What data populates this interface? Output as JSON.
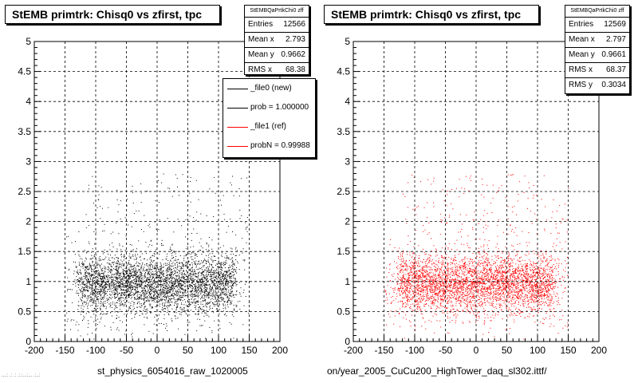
{
  "chart_data": [
    {
      "type": "scatter",
      "title": "StEMB primtrk: Chisq0 vs zfirst, tpc",
      "xlabel": "st_physics_6054016_raw_1020005",
      "ylabel": "",
      "xlim": [
        -200,
        200
      ],
      "ylim": [
        0,
        5
      ],
      "xticks": [
        "-200",
        "-150",
        "-100",
        "-50",
        "0",
        "50",
        "100",
        "150",
        "200"
      ],
      "yticks": [
        "0",
        "0.5",
        "1",
        "1.5",
        "2",
        "2.5",
        "3",
        "3.5",
        "4",
        "4.5",
        "5"
      ],
      "grid": true,
      "marker_color": "#000000",
      "series": [
        {
          "name": "_file0 (new)",
          "points": 12566,
          "x_core": [
            -125,
            125
          ],
          "y_core": [
            0.3,
            1.7
          ]
        }
      ],
      "stats": {
        "name": "StEMBQaPrtkChi0 zff",
        "entries": "12566",
        "mean_x": "2.793",
        "mean_y": "0.9662",
        "rms_x": "68.38"
      },
      "legend": {
        "placement": "top-right",
        "entries": [
          {
            "label": "_file0 (new)",
            "color": "#000000"
          },
          {
            "label": "prob = 1.000000",
            "color": "#000000"
          },
          {
            "label": "_file1 (ref)",
            "color": "#ff0000"
          },
          {
            "label": "probN = 0.99988",
            "color": "#ff0000"
          }
        ]
      }
    },
    {
      "type": "scatter",
      "title": "StEMB primtrk: Chisq0 vs zfirst, tpc",
      "xlabel": "on/year_2005_CuCu200_HighTower_daq_sl302.ittf/",
      "ylabel": "",
      "xlim": [
        -200,
        200
      ],
      "ylim": [
        0,
        5
      ],
      "xticks": [
        "-200",
        "-150",
        "-100",
        "-50",
        "0",
        "50",
        "100",
        "150",
        "200"
      ],
      "yticks": [
        "0",
        "0.5",
        "1",
        "1.5",
        "2",
        "2.5",
        "3",
        "3.5",
        "4",
        "4.5",
        "5"
      ],
      "grid": true,
      "marker_color": "#ff0000",
      "series": [
        {
          "name": "_file1 (ref)",
          "points": 12569,
          "x_core": [
            -125,
            125
          ],
          "y_core": [
            0.3,
            1.7
          ]
        }
      ],
      "stats": {
        "name": "StEMBQaPrtkChi0 zff",
        "entries": "12569",
        "mean_x": "2.797",
        "mean_y": "0.9661",
        "rms_x": "68.37",
        "rms_y": "0.3034"
      }
    }
  ],
  "stats_labels": {
    "entries": "Entries",
    "mean_x": "Mean x",
    "mean_y": "Mean y",
    "rms_x": "RMS x",
    "rms_y": "RMS y"
  },
  "footer": "....: .:  .: .:.:...:...  .:..:"
}
